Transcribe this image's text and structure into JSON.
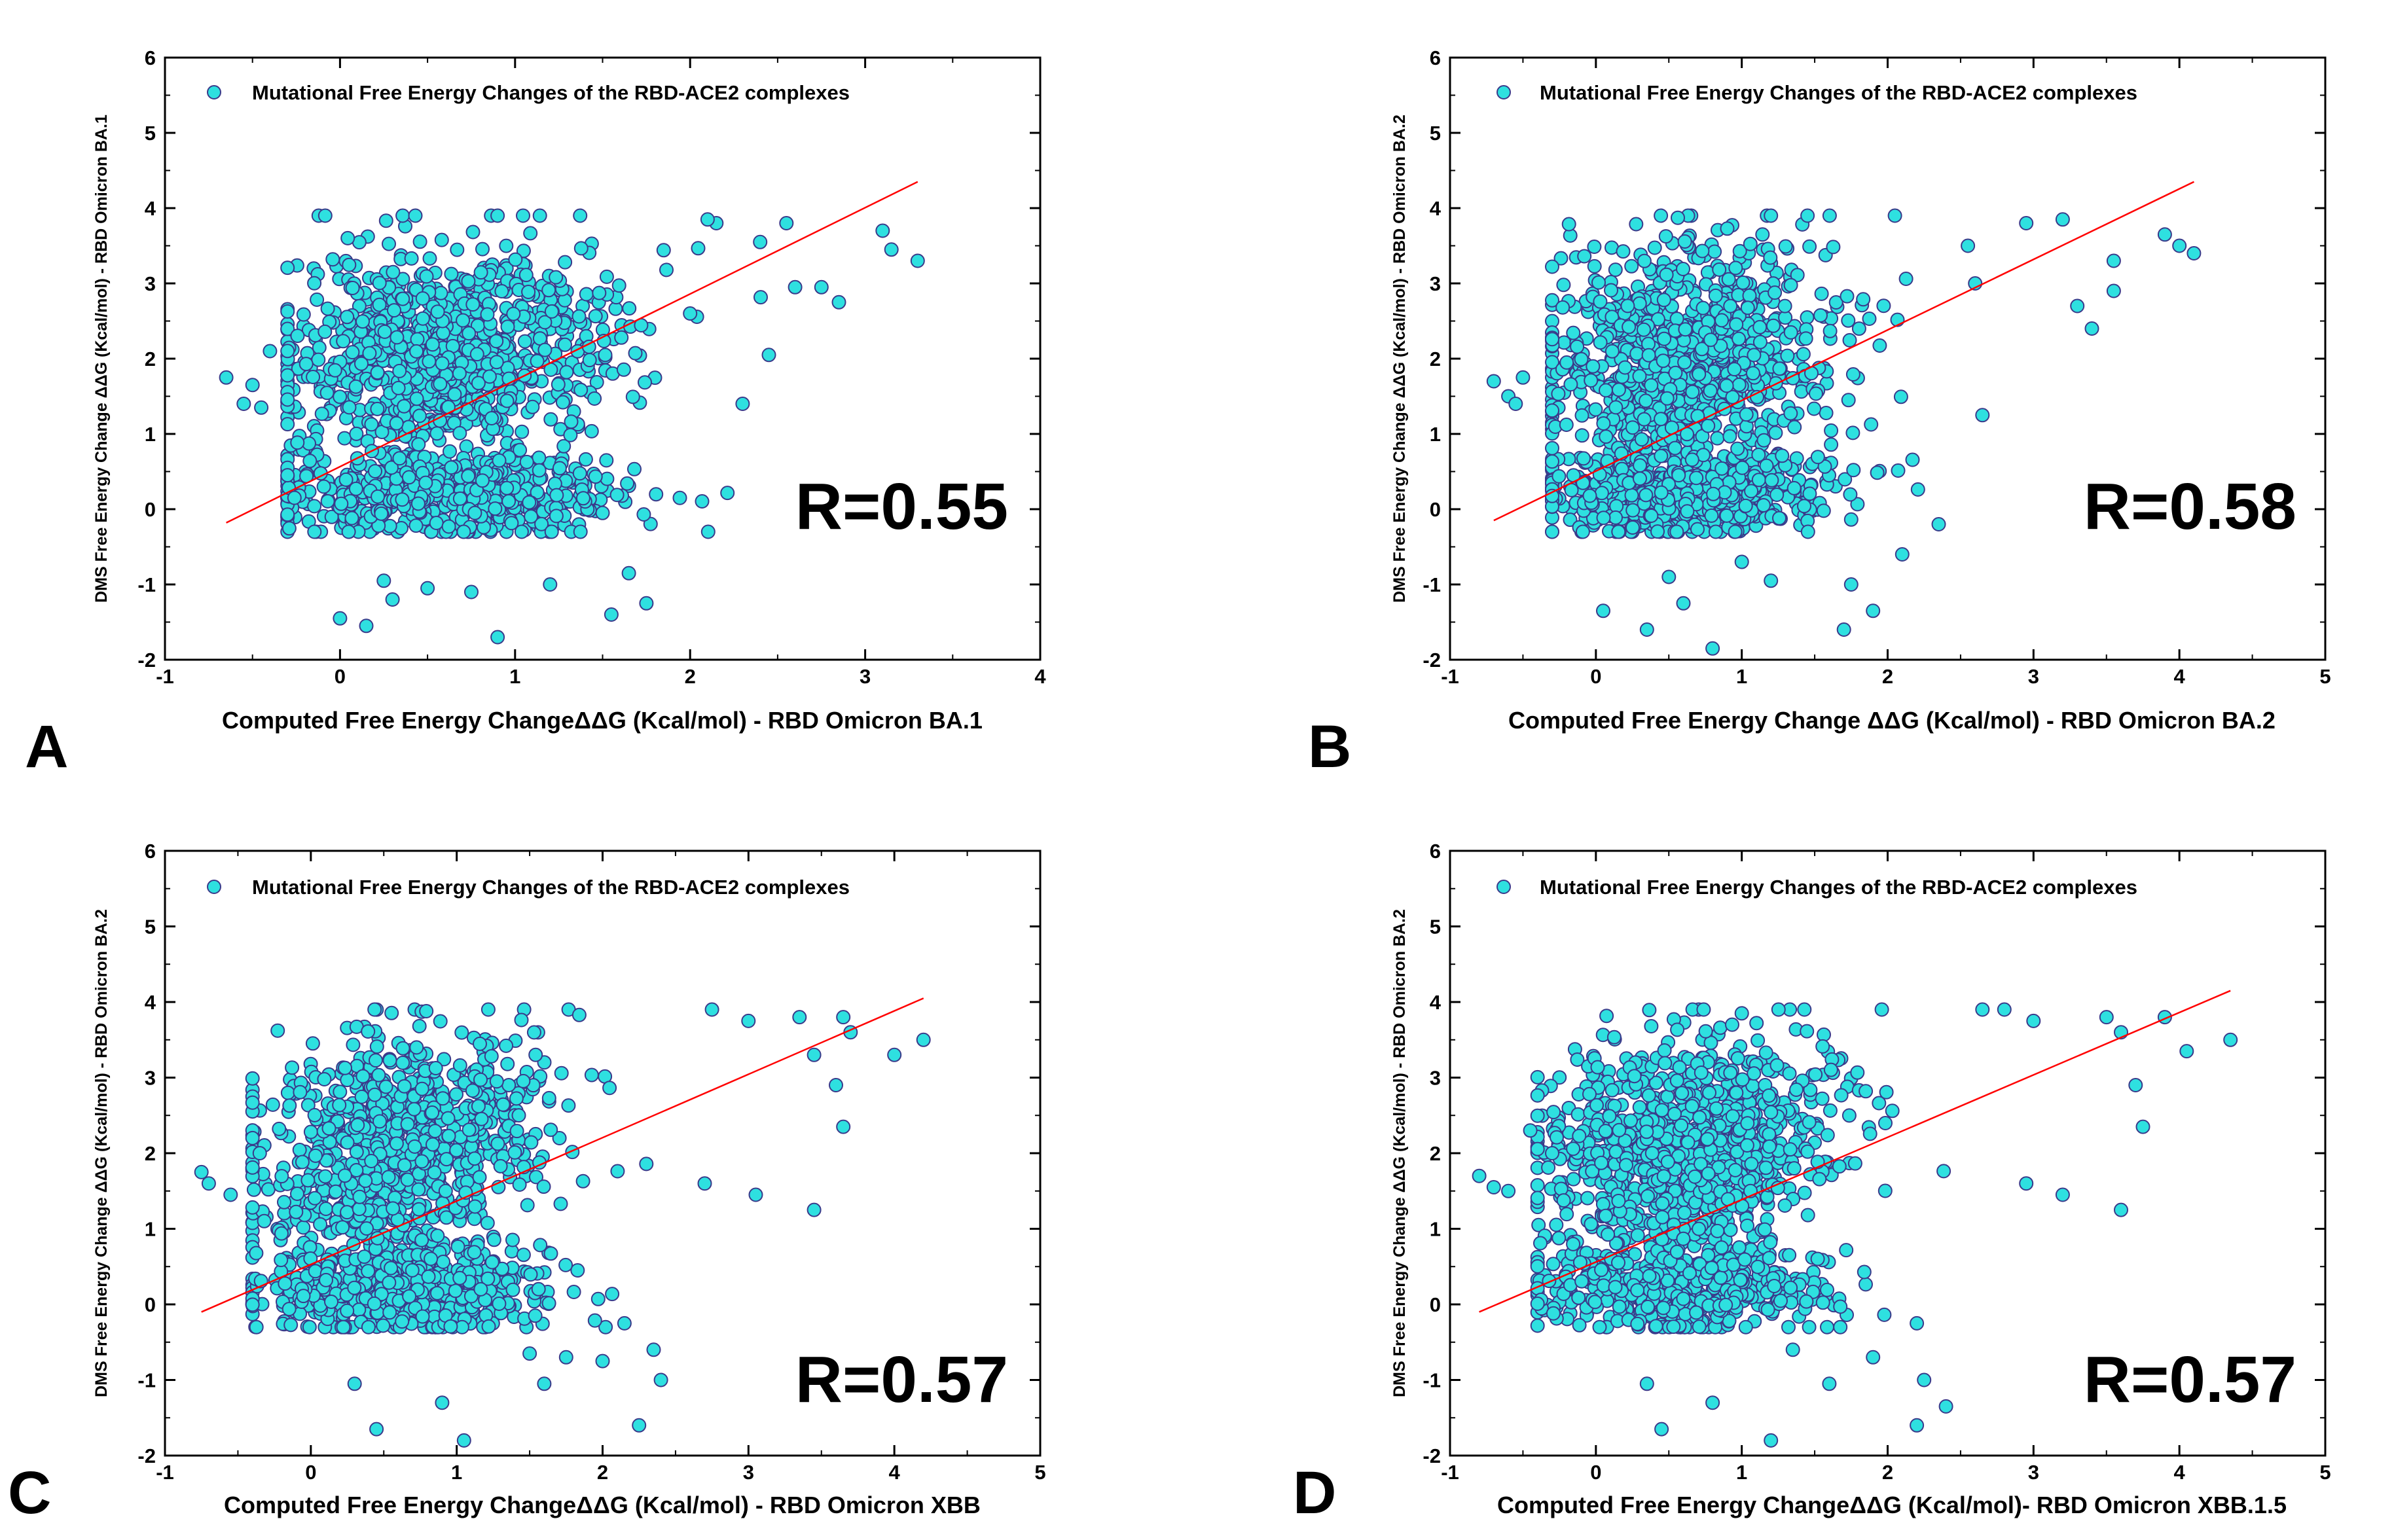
{
  "colors": {
    "point_fill": "#2ee0e0",
    "point_edge": "#3a3a8a",
    "fit_line": "#ff0000",
    "axis": "#000000"
  },
  "chart_data": [
    {
      "panel": "A",
      "type": "scatter",
      "legend": "Mutational Free Energy Changes of the RBD-ACE2 complexes",
      "xlabel": "Computed Free Energy ChangeΔΔG (Kcal/mol) - RBD Omicron BA.1",
      "ylabel": "DMS Free  Energy Change ΔΔG (Kcal/mol) - RBD Omicron BA.1",
      "annotation": "R=0.55",
      "xlim": [
        -1,
        4
      ],
      "ylim": [
        -2,
        6
      ],
      "xticks": [
        -1,
        0,
        1,
        2,
        3,
        4
      ],
      "yticks": [
        -2,
        -1,
        0,
        1,
        2,
        3,
        4,
        5,
        6
      ],
      "fit_line": {
        "x": [
          -0.65,
          3.3
        ],
        "y": [
          -0.18,
          4.35
        ]
      },
      "cloud": {
        "n": 1500,
        "x_range": [
          -0.3,
          2.6
        ],
        "y_range": [
          -0.3,
          3.9
        ],
        "seed": 11
      },
      "points": [
        [
          -0.65,
          1.75
        ],
        [
          -0.55,
          1.4
        ],
        [
          -0.45,
          1.35
        ],
        [
          -0.5,
          1.65
        ],
        [
          -0.4,
          2.1
        ],
        [
          0.0,
          -1.45
        ],
        [
          0.15,
          -1.55
        ],
        [
          0.5,
          -1.05
        ],
        [
          0.9,
          -1.7
        ],
        [
          1.55,
          -1.4
        ],
        [
          1.75,
          -1.25
        ],
        [
          0.3,
          -1.2
        ],
        [
          0.25,
          -0.95
        ],
        [
          0.75,
          -1.1
        ],
        [
          1.2,
          -1.0
        ],
        [
          1.65,
          -0.85
        ],
        [
          2.15,
          3.8
        ],
        [
          2.55,
          3.8
        ],
        [
          2.6,
          2.95
        ],
        [
          2.75,
          2.95
        ],
        [
          2.85,
          2.75
        ],
        [
          3.1,
          3.7
        ],
        [
          3.15,
          3.45
        ],
        [
          3.3,
          3.3
        ],
        [
          2.45,
          2.05
        ],
        [
          2.3,
          1.4
        ],
        [
          2.0,
          2.6
        ],
        [
          2.4,
          3.55
        ],
        [
          2.1,
          3.85
        ],
        [
          0.9,
          3.9
        ]
      ]
    },
    {
      "panel": "B",
      "type": "scatter",
      "legend": "Mutational Free Energy Changes of the RBD-ACE2 complexes",
      "xlabel": "Computed Free Energy Change  ΔΔG (Kcal/mol) - RBD Omicron BA.2",
      "ylabel": "DMS Free  Energy Change ΔΔG (Kcal/mol) - RBD Omicron BA.2",
      "annotation": "R=0.58",
      "xlim": [
        -1,
        5
      ],
      "ylim": [
        -2,
        6
      ],
      "xticks": [
        -1,
        0,
        1,
        2,
        3,
        4,
        5
      ],
      "yticks": [
        -2,
        -1,
        0,
        1,
        2,
        3,
        4,
        5,
        6
      ],
      "fit_line": {
        "x": [
          -0.7,
          4.1
        ],
        "y": [
          -0.15,
          4.35
        ]
      },
      "cloud": {
        "n": 1500,
        "x_range": [
          -0.3,
          2.3
        ],
        "y_range": [
          -0.3,
          3.9
        ],
        "seed": 23
      },
      "points": [
        [
          -0.7,
          1.7
        ],
        [
          -0.6,
          1.5
        ],
        [
          -0.55,
          1.4
        ],
        [
          -0.5,
          1.75
        ],
        [
          0.05,
          -1.35
        ],
        [
          0.35,
          -1.6
        ],
        [
          0.8,
          -1.85
        ],
        [
          1.7,
          -1.6
        ],
        [
          1.9,
          -1.35
        ],
        [
          0.6,
          -1.25
        ],
        [
          1.2,
          -0.95
        ],
        [
          1.75,
          -1.0
        ],
        [
          2.1,
          -0.6
        ],
        [
          2.35,
          -0.2
        ],
        [
          2.95,
          3.8
        ],
        [
          3.2,
          3.85
        ],
        [
          3.3,
          2.7
        ],
        [
          3.4,
          2.4
        ],
        [
          3.55,
          2.9
        ],
        [
          3.55,
          3.3
        ],
        [
          3.9,
          3.65
        ],
        [
          4.0,
          3.5
        ],
        [
          4.1,
          3.4
        ],
        [
          2.65,
          1.25
        ],
        [
          2.55,
          3.5
        ],
        [
          2.6,
          3.0
        ],
        [
          2.05,
          3.9
        ],
        [
          1.2,
          3.9
        ],
        [
          0.5,
          -0.9
        ],
        [
          1.0,
          -0.7
        ]
      ]
    },
    {
      "panel": "C",
      "type": "scatter",
      "legend": "Mutational Free Energy Changes of the RBD-ACE2 complexes",
      "xlabel": "Computed Free Energy ChangeΔΔG (Kcal/mol) - RBD Omicron XBB",
      "ylabel": "DMS Free  Energy Change ΔΔG (Kcal/mol) - RBD Omicron BA.2",
      "annotation": "R=0.57",
      "xlim": [
        -1,
        5
      ],
      "ylim": [
        -2,
        6
      ],
      "xticks": [
        -1,
        0,
        1,
        2,
        3,
        4,
        5
      ],
      "yticks": [
        -2,
        -1,
        0,
        1,
        2,
        3,
        4,
        5,
        6
      ],
      "fit_line": {
        "x": [
          -0.75,
          4.2
        ],
        "y": [
          -0.1,
          4.05
        ]
      },
      "cloud": {
        "n": 1500,
        "x_range": [
          -0.4,
          2.3
        ],
        "y_range": [
          -0.3,
          3.9
        ],
        "seed": 37
      },
      "points": [
        [
          -0.75,
          1.75
        ],
        [
          -0.7,
          1.6
        ],
        [
          -0.55,
          1.45
        ],
        [
          -0.4,
          2.2
        ],
        [
          -0.35,
          2.0
        ],
        [
          0.45,
          -1.65
        ],
        [
          1.05,
          -1.8
        ],
        [
          0.9,
          -1.3
        ],
        [
          2.25,
          -1.6
        ],
        [
          2.4,
          -1.0
        ],
        [
          1.6,
          -1.05
        ],
        [
          1.75,
          -0.7
        ],
        [
          2.0,
          -0.75
        ],
        [
          2.35,
          -0.6
        ],
        [
          2.15,
          -0.25
        ],
        [
          2.75,
          3.9
        ],
        [
          3.0,
          3.75
        ],
        [
          3.35,
          3.8
        ],
        [
          3.45,
          3.3
        ],
        [
          3.6,
          2.9
        ],
        [
          3.65,
          3.8
        ],
        [
          3.7,
          3.6
        ],
        [
          3.65,
          2.35
        ],
        [
          4.0,
          3.3
        ],
        [
          4.2,
          3.5
        ],
        [
          3.45,
          1.25
        ],
        [
          3.05,
          1.45
        ],
        [
          2.7,
          1.6
        ],
        [
          0.3,
          -1.05
        ],
        [
          1.5,
          -0.65
        ]
      ]
    },
    {
      "panel": "D",
      "type": "scatter",
      "legend": "Mutational Free Energy Changes of the RBD-ACE2 complexes",
      "xlabel": "Computed Free Energy ChangeΔΔG (Kcal/mol)- RBD Omicron XBB.1.5",
      "ylabel": "DMS Free  Energy Change ΔΔG (Kcal/mol) - RBD Omicron BA.2",
      "annotation": "R=0.57",
      "xlim": [
        -1,
        5
      ],
      "ylim": [
        -2,
        6
      ],
      "xticks": [
        -1,
        0,
        1,
        2,
        3,
        4,
        5
      ],
      "yticks": [
        -2,
        -1,
        0,
        1,
        2,
        3,
        4,
        5,
        6
      ],
      "fit_line": {
        "x": [
          -0.8,
          4.35
        ],
        "y": [
          -0.1,
          4.15
        ]
      },
      "cloud": {
        "n": 1500,
        "x_range": [
          -0.4,
          2.4
        ],
        "y_range": [
          -0.3,
          3.9
        ],
        "seed": 53
      },
      "points": [
        [
          -0.8,
          1.7
        ],
        [
          -0.7,
          1.55
        ],
        [
          -0.6,
          1.5
        ],
        [
          -0.45,
          2.3
        ],
        [
          -0.3,
          2.0
        ],
        [
          0.45,
          -1.65
        ],
        [
          1.2,
          -1.8
        ],
        [
          0.8,
          -1.3
        ],
        [
          2.2,
          -1.6
        ],
        [
          2.25,
          -1.0
        ],
        [
          2.4,
          -1.35
        ],
        [
          1.6,
          -1.05
        ],
        [
          1.9,
          -0.7
        ],
        [
          2.2,
          -0.25
        ],
        [
          2.8,
          3.9
        ],
        [
          3.0,
          3.75
        ],
        [
          3.5,
          3.8
        ],
        [
          3.6,
          3.6
        ],
        [
          3.7,
          2.9
        ],
        [
          3.75,
          2.35
        ],
        [
          3.9,
          3.8
        ],
        [
          4.05,
          3.35
        ],
        [
          4.35,
          3.5
        ],
        [
          3.6,
          1.25
        ],
        [
          3.2,
          1.45
        ],
        [
          2.95,
          1.6
        ],
        [
          0.35,
          -1.05
        ],
        [
          1.35,
          -0.6
        ],
        [
          2.65,
          3.9
        ],
        [
          1.0,
          3.85
        ]
      ]
    }
  ]
}
